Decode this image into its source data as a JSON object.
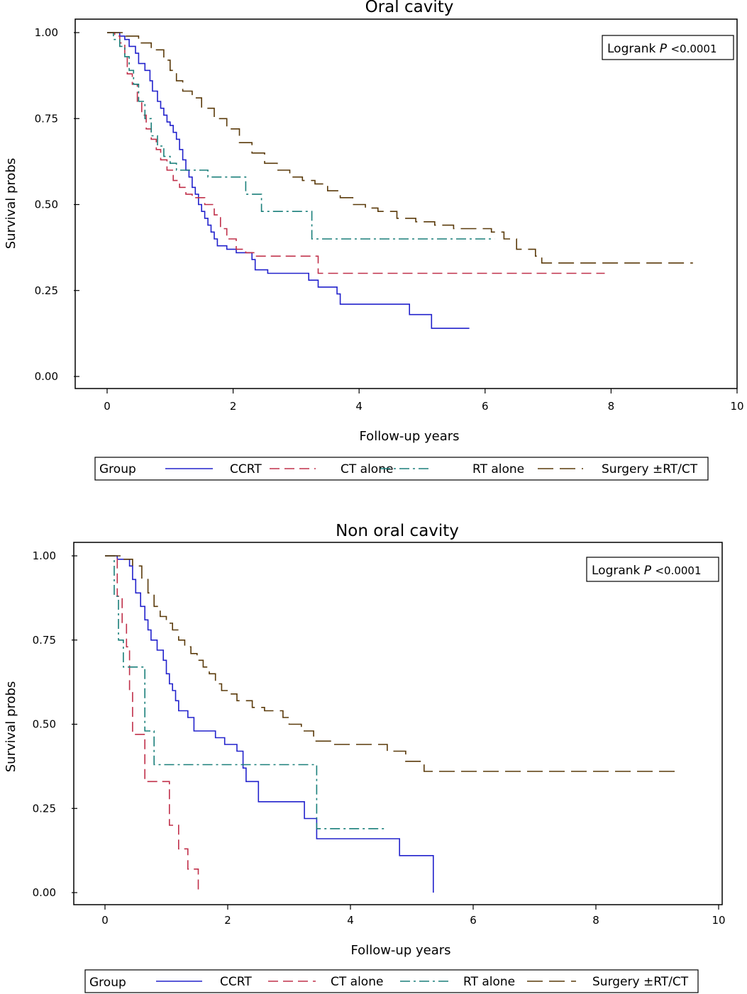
{
  "chart_data": [
    {
      "type": "line",
      "title": "Oral cavity",
      "xlabel": "Follow-up years",
      "ylabel": "Survival probs",
      "xlim": [
        0,
        10
      ],
      "ylim": [
        0,
        1
      ],
      "xticks": [
        "0",
        "2",
        "4",
        "6",
        "8",
        "10"
      ],
      "yticks": [
        "0.00",
        "0.25",
        "0.50",
        "0.75",
        "1.00"
      ],
      "annotation": {
        "text": "Logrank",
        "p": "P",
        "value": "<0.0001"
      },
      "legend_title": "Group",
      "series": [
        {
          "name": "CCRT",
          "color": "#2222cc",
          "dash": "",
          "points": [
            [
              0,
              1
            ],
            [
              0.12,
              1
            ],
            [
              0.2,
              0.99
            ],
            [
              0.28,
              0.98
            ],
            [
              0.35,
              0.96
            ],
            [
              0.45,
              0.94
            ],
            [
              0.5,
              0.91
            ],
            [
              0.6,
              0.89
            ],
            [
              0.68,
              0.86
            ],
            [
              0.72,
              0.83
            ],
            [
              0.8,
              0.8
            ],
            [
              0.85,
              0.78
            ],
            [
              0.9,
              0.76
            ],
            [
              0.95,
              0.74
            ],
            [
              1.0,
              0.73
            ],
            [
              1.05,
              0.71
            ],
            [
              1.1,
              0.69
            ],
            [
              1.15,
              0.66
            ],
            [
              1.2,
              0.63
            ],
            [
              1.25,
              0.6
            ],
            [
              1.3,
              0.58
            ],
            [
              1.35,
              0.55
            ],
            [
              1.4,
              0.53
            ],
            [
              1.45,
              0.5
            ],
            [
              1.5,
              0.48
            ],
            [
              1.55,
              0.46
            ],
            [
              1.6,
              0.44
            ],
            [
              1.65,
              0.42
            ],
            [
              1.7,
              0.4
            ],
            [
              1.75,
              0.38
            ],
            [
              1.9,
              0.37
            ],
            [
              2.05,
              0.36
            ],
            [
              2.3,
              0.34
            ],
            [
              2.35,
              0.31
            ],
            [
              2.55,
              0.3
            ],
            [
              3.2,
              0.28
            ],
            [
              3.35,
              0.26
            ],
            [
              3.65,
              0.24
            ],
            [
              3.7,
              0.21
            ],
            [
              4.8,
              0.18
            ],
            [
              5.15,
              0.14
            ],
            [
              5.75,
              0.14
            ]
          ]
        },
        {
          "name": "CT alone",
          "color": "#c0304a",
          "dash": "14 7",
          "points": [
            [
              0,
              1
            ],
            [
              0.12,
              0.99
            ],
            [
              0.2,
              0.97
            ],
            [
              0.28,
              0.93
            ],
            [
              0.32,
              0.88
            ],
            [
              0.4,
              0.85
            ],
            [
              0.48,
              0.8
            ],
            [
              0.55,
              0.76
            ],
            [
              0.62,
              0.72
            ],
            [
              0.7,
              0.69
            ],
            [
              0.78,
              0.66
            ],
            [
              0.85,
              0.63
            ],
            [
              0.95,
              0.6
            ],
            [
              1.05,
              0.57
            ],
            [
              1.15,
              0.55
            ],
            [
              1.25,
              0.53
            ],
            [
              1.35,
              0.52
            ],
            [
              1.55,
              0.5
            ],
            [
              1.7,
              0.47
            ],
            [
              1.8,
              0.43
            ],
            [
              1.9,
              0.4
            ],
            [
              2.05,
              0.37
            ],
            [
              2.2,
              0.36
            ],
            [
              2.35,
              0.35
            ],
            [
              3.3,
              0.35
            ],
            [
              3.35,
              0.3
            ],
            [
              7.9,
              0.3
            ]
          ]
        },
        {
          "name": "RT alone",
          "color": "#1a7f7a",
          "dash": "14 5 3 5",
          "points": [
            [
              0,
              1
            ],
            [
              0.1,
              0.98
            ],
            [
              0.2,
              0.96
            ],
            [
              0.28,
              0.93
            ],
            [
              0.35,
              0.89
            ],
            [
              0.42,
              0.85
            ],
            [
              0.5,
              0.8
            ],
            [
              0.6,
              0.75
            ],
            [
              0.7,
              0.7
            ],
            [
              0.8,
              0.67
            ],
            [
              0.9,
              0.64
            ],
            [
              1.0,
              0.62
            ],
            [
              1.1,
              0.6
            ],
            [
              1.5,
              0.6
            ],
            [
              1.6,
              0.58
            ],
            [
              2.15,
              0.58
            ],
            [
              2.2,
              0.53
            ],
            [
              2.4,
              0.53
            ],
            [
              2.45,
              0.48
            ],
            [
              3.2,
              0.48
            ],
            [
              3.25,
              0.4
            ],
            [
              6.15,
              0.4
            ]
          ]
        },
        {
          "name": "Surgery ±RT/CT",
          "color": "#5a3a0a",
          "dash": "22 9",
          "points": [
            [
              0,
              1
            ],
            [
              0.3,
              0.99
            ],
            [
              0.5,
              0.97
            ],
            [
              0.7,
              0.95
            ],
            [
              0.9,
              0.92
            ],
            [
              1.0,
              0.89
            ],
            [
              1.1,
              0.86
            ],
            [
              1.2,
              0.83
            ],
            [
              1.35,
              0.81
            ],
            [
              1.5,
              0.78
            ],
            [
              1.7,
              0.75
            ],
            [
              1.9,
              0.72
            ],
            [
              2.1,
              0.68
            ],
            [
              2.3,
              0.65
            ],
            [
              2.5,
              0.62
            ],
            [
              2.7,
              0.6
            ],
            [
              2.9,
              0.58
            ],
            [
              3.1,
              0.57
            ],
            [
              3.3,
              0.56
            ],
            [
              3.5,
              0.54
            ],
            [
              3.7,
              0.52
            ],
            [
              3.9,
              0.5
            ],
            [
              4.1,
              0.49
            ],
            [
              4.3,
              0.48
            ],
            [
              4.6,
              0.46
            ],
            [
              4.9,
              0.45
            ],
            [
              5.2,
              0.44
            ],
            [
              5.5,
              0.43
            ],
            [
              6.1,
              0.42
            ],
            [
              6.3,
              0.4
            ],
            [
              6.5,
              0.37
            ],
            [
              6.8,
              0.35
            ],
            [
              6.9,
              0.33
            ],
            [
              9.3,
              0.33
            ]
          ]
        }
      ]
    },
    {
      "type": "line",
      "title": "Non oral cavity",
      "xlabel": "Follow-up years",
      "ylabel": "Survival probs",
      "xlim": [
        0,
        10
      ],
      "ylim": [
        0,
        1
      ],
      "xticks": [
        "0",
        "2",
        "4",
        "6",
        "8",
        "10"
      ],
      "yticks": [
        "0.00",
        "0.25",
        "0.50",
        "0.75",
        "1.00"
      ],
      "annotation": {
        "text": "Logrank",
        "p": "P",
        "value": "<0.0001"
      },
      "legend_title": "Group",
      "series": [
        {
          "name": "CCRT",
          "color": "#2222cc",
          "dash": "",
          "points": [
            [
              0,
              1
            ],
            [
              0.2,
              0.99
            ],
            [
              0.4,
              0.97
            ],
            [
              0.45,
              0.93
            ],
            [
              0.5,
              0.89
            ],
            [
              0.58,
              0.85
            ],
            [
              0.65,
              0.81
            ],
            [
              0.7,
              0.78
            ],
            [
              0.75,
              0.75
            ],
            [
              0.85,
              0.72
            ],
            [
              0.95,
              0.69
            ],
            [
              1.0,
              0.65
            ],
            [
              1.05,
              0.62
            ],
            [
              1.1,
              0.6
            ],
            [
              1.15,
              0.57
            ],
            [
              1.2,
              0.54
            ],
            [
              1.35,
              0.52
            ],
            [
              1.45,
              0.48
            ],
            [
              1.8,
              0.46
            ],
            [
              1.95,
              0.44
            ],
            [
              2.15,
              0.42
            ],
            [
              2.25,
              0.37
            ],
            [
              2.3,
              0.33
            ],
            [
              2.5,
              0.27
            ],
            [
              3.25,
              0.22
            ],
            [
              3.45,
              0.16
            ],
            [
              4.8,
              0.11
            ],
            [
              5.35,
              0.0
            ]
          ]
        },
        {
          "name": "CT alone",
          "color": "#c0304a",
          "dash": "14 7",
          "points": [
            [
              0,
              1
            ],
            [
              0.2,
              0.88
            ],
            [
              0.28,
              0.8
            ],
            [
              0.35,
              0.73
            ],
            [
              0.4,
              0.6
            ],
            [
              0.45,
              0.47
            ],
            [
              0.65,
              0.33
            ],
            [
              1.05,
              0.2
            ],
            [
              1.2,
              0.13
            ],
            [
              1.35,
              0.07
            ],
            [
              1.52,
              0.0
            ]
          ]
        },
        {
          "name": "RT alone",
          "color": "#1a7f7a",
          "dash": "14 5 3 5",
          "points": [
            [
              0,
              1
            ],
            [
              0.15,
              0.88
            ],
            [
              0.22,
              0.75
            ],
            [
              0.3,
              0.67
            ],
            [
              0.6,
              0.67
            ],
            [
              0.65,
              0.48
            ],
            [
              0.8,
              0.38
            ],
            [
              3.45,
              0.38
            ],
            [
              3.45,
              0.19
            ],
            [
              4.6,
              0.19
            ]
          ]
        },
        {
          "name": "Surgery ±RT/CT",
          "color": "#5a3a0a",
          "dash": "22 9",
          "points": [
            [
              0,
              1
            ],
            [
              0.3,
              0.99
            ],
            [
              0.45,
              0.97
            ],
            [
              0.6,
              0.93
            ],
            [
              0.7,
              0.89
            ],
            [
              0.8,
              0.85
            ],
            [
              0.9,
              0.82
            ],
            [
              1.0,
              0.8
            ],
            [
              1.1,
              0.78
            ],
            [
              1.2,
              0.75
            ],
            [
              1.3,
              0.73
            ],
            [
              1.4,
              0.71
            ],
            [
              1.5,
              0.69
            ],
            [
              1.6,
              0.67
            ],
            [
              1.7,
              0.65
            ],
            [
              1.8,
              0.62
            ],
            [
              1.9,
              0.6
            ],
            [
              2.0,
              0.59
            ],
            [
              2.15,
              0.57
            ],
            [
              2.4,
              0.55
            ],
            [
              2.6,
              0.54
            ],
            [
              2.9,
              0.52
            ],
            [
              3.0,
              0.5
            ],
            [
              3.2,
              0.48
            ],
            [
              3.4,
              0.45
            ],
            [
              3.7,
              0.44
            ],
            [
              4.6,
              0.42
            ],
            [
              4.9,
              0.39
            ],
            [
              5.2,
              0.36
            ],
            [
              9.3,
              0.36
            ]
          ]
        }
      ]
    }
  ]
}
